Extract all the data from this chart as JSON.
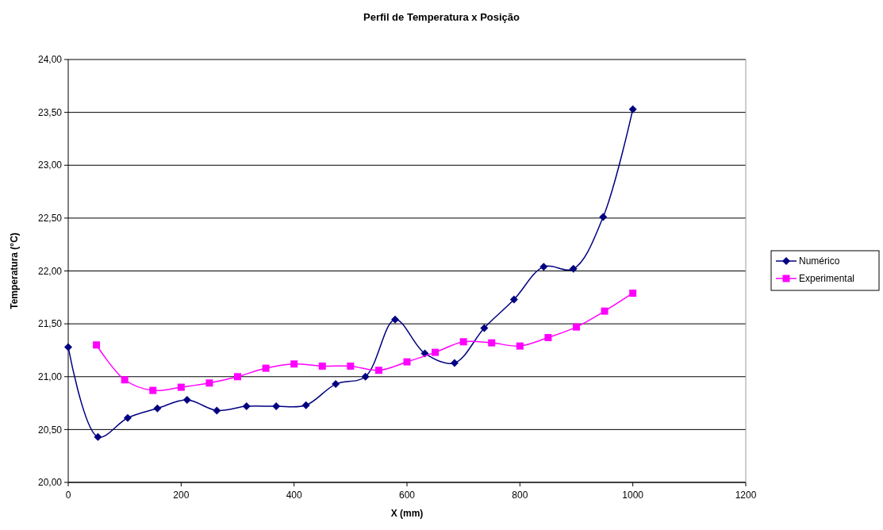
{
  "chart_data": {
    "type": "line",
    "title": "Perfil de Temperatura x Posição",
    "xlabel": "X (mm)",
    "ylabel": "Temperatura (°C)",
    "xlim": [
      0,
      1200
    ],
    "xticks": [
      0,
      200,
      400,
      600,
      800,
      1000,
      1200
    ],
    "ylim": [
      20,
      24
    ],
    "yticks": [
      {
        "value": 20,
        "label": "20,00"
      },
      {
        "value": 20.5,
        "label": "20,50"
      },
      {
        "value": 21,
        "label": "21,00"
      },
      {
        "value": 21.5,
        "label": "21,50"
      },
      {
        "value": 22,
        "label": "22,00"
      },
      {
        "value": 22.5,
        "label": "22,50"
      },
      {
        "value": 23,
        "label": "23,00"
      },
      {
        "value": 23.5,
        "label": "23,50"
      },
      {
        "value": 24,
        "label": "24,00"
      }
    ],
    "grid": "y",
    "legend": "right",
    "series": [
      {
        "name": "Numérico",
        "color": "#000080",
        "marker": "diamond",
        "x": [
          0,
          52.6,
          105.3,
          157.9,
          210.5,
          263.2,
          315.8,
          368.4,
          421.1,
          473.7,
          526.3,
          578.9,
          631.6,
          684.2,
          736.8,
          789.5,
          842.1,
          894.7,
          947.4,
          1000
        ],
        "values": [
          21.28,
          20.43,
          20.61,
          20.7,
          20.78,
          20.68,
          20.72,
          20.72,
          20.73,
          20.93,
          21.0,
          21.54,
          21.22,
          21.13,
          21.46,
          21.73,
          22.04,
          22.02,
          22.51,
          23.53
        ]
      },
      {
        "name": "Experimental",
        "color": "#ff00ff",
        "marker": "square",
        "x": [
          50,
          100,
          150,
          200,
          250,
          300,
          350,
          400,
          450,
          500,
          550,
          600,
          650,
          700,
          750,
          800,
          850,
          900,
          950,
          1000
        ],
        "values": [
          21.3,
          20.97,
          20.87,
          20.9,
          20.94,
          21.0,
          21.08,
          21.12,
          21.1,
          21.1,
          21.06,
          21.14,
          21.23,
          21.33,
          21.32,
          21.29,
          21.37,
          21.47,
          21.62,
          21.79
        ]
      }
    ]
  }
}
